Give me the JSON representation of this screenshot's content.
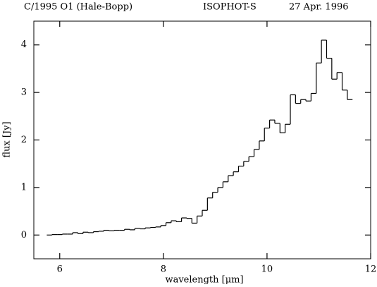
{
  "chart_data": {
    "type": "step",
    "title": "C/1995 O1 (Hale-Bopp)",
    "subtitle": "ISOPHOT-S",
    "date": "27 Apr. 1996",
    "x_label": "wavelength [μm]",
    "y_label": "flux [Jy]",
    "xlim": [
      5.5,
      12
    ],
    "ylim": [
      -0.5,
      4.5
    ],
    "xticks": [
      6,
      8,
      10,
      12
    ],
    "yticks": [
      0,
      1,
      2,
      3,
      4
    ],
    "color": "#000000",
    "x": [
      5.8,
      5.9,
      6.0,
      6.1,
      6.2,
      6.3,
      6.4,
      6.5,
      6.6,
      6.7,
      6.8,
      6.9,
      7.0,
      7.1,
      7.2,
      7.3,
      7.4,
      7.5,
      7.6,
      7.7,
      7.8,
      7.9,
      8.0,
      8.1,
      8.2,
      8.3,
      8.4,
      8.5,
      8.6,
      8.7,
      8.8,
      8.9,
      9.0,
      9.1,
      9.2,
      9.3,
      9.4,
      9.5,
      9.6,
      9.7,
      9.8,
      9.9,
      10.0,
      10.1,
      10.2,
      10.3,
      10.4,
      10.5,
      10.6,
      10.7,
      10.8,
      10.9,
      11.0,
      11.1,
      11.2,
      11.3,
      11.4,
      11.5,
      11.6
    ],
    "values": [
      0.0,
      0.01,
      0.01,
      0.02,
      0.02,
      0.05,
      0.03,
      0.06,
      0.05,
      0.07,
      0.08,
      0.1,
      0.09,
      0.1,
      0.1,
      0.12,
      0.11,
      0.14,
      0.13,
      0.15,
      0.16,
      0.17,
      0.2,
      0.26,
      0.3,
      0.28,
      0.36,
      0.35,
      0.25,
      0.4,
      0.52,
      0.78,
      0.9,
      1.0,
      1.12,
      1.25,
      1.33,
      1.45,
      1.55,
      1.65,
      1.8,
      1.98,
      2.25,
      2.42,
      2.35,
      2.15,
      2.33,
      2.95,
      2.77,
      2.85,
      2.82,
      2.98,
      3.62,
      4.1,
      3.72,
      3.28,
      3.42,
      3.05,
      2.85
    ]
  }
}
